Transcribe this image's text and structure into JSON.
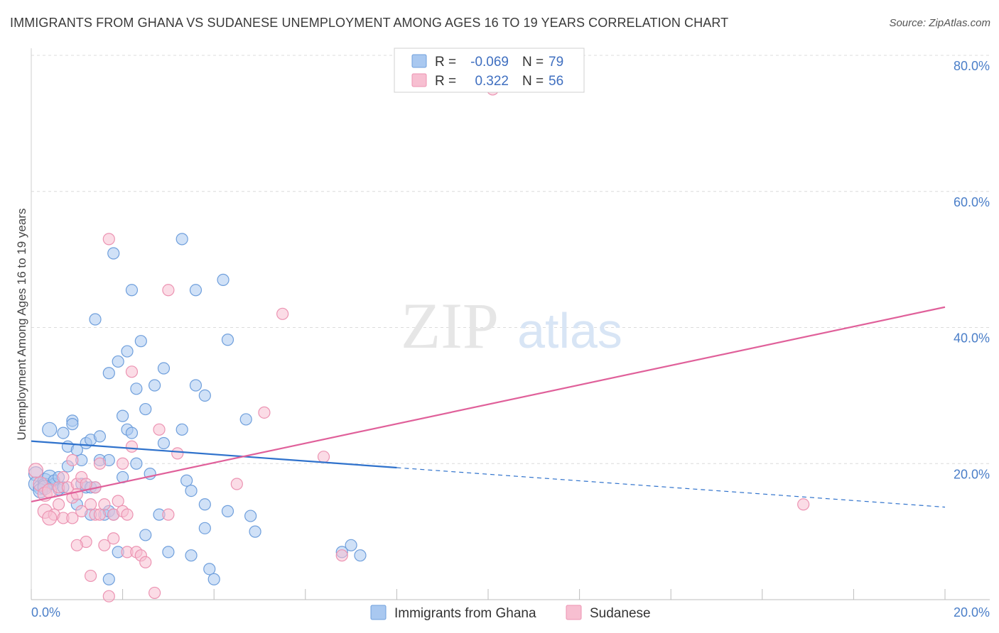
{
  "title": "IMMIGRANTS FROM GHANA VS SUDANESE UNEMPLOYMENT AMONG AGES 16 TO 19 YEARS CORRELATION CHART",
  "source": "Source: ZipAtlas.com",
  "colors": {
    "ghana_fill": "#a9c8f0",
    "ghana_stroke": "#6f9fdc",
    "ghana_line": "#2f72cc",
    "sudanese_fill": "#f7bfd1",
    "sudanese_stroke": "#ec93b2",
    "sudanese_line": "#e0609a",
    "grid": "#dcdcdc",
    "tick_label": "#4a7ec8"
  },
  "legend": {
    "rows": [
      {
        "r_label": "R =",
        "r_value": "-0.069",
        "n_label": "N =",
        "n_value": "79"
      },
      {
        "r_label": "R =",
        "r_value": "0.322",
        "n_label": "N =",
        "n_value": "56"
      }
    ]
  },
  "watermark": {
    "zip": "ZIP",
    "atlas": "atlas"
  },
  "chart_data": {
    "type": "scatter",
    "title": "IMMIGRANTS FROM GHANA VS SUDANESE UNEMPLOYMENT AMONG AGES 16 TO 19 YEARS CORRELATION CHART",
    "xlabel": "",
    "ylabel": "Unemployment Among Ages 16 to 19 years",
    "xlim": [
      0,
      20
    ],
    "ylim": [
      0,
      80
    ],
    "x_tick_labels": [
      "0.0%",
      "20.0%"
    ],
    "y_ticks": [
      20,
      40,
      60,
      80
    ],
    "y_tick_labels": [
      "20.0%",
      "40.0%",
      "60.0%",
      "80.0%"
    ],
    "grid": true,
    "legend_position": "top-center",
    "series": [
      {
        "name": "Immigrants from Ghana",
        "color_key": "ghana",
        "trend": {
          "x0": 0,
          "y0": 23.3,
          "x1": 8,
          "y1": 19.4,
          "dashed_to_x": 20,
          "dashed_to_y": 13.6
        },
        "points": [
          [
            0.1,
            18.5
          ],
          [
            0.1,
            17.0
          ],
          [
            0.2,
            16.5
          ],
          [
            0.3,
            17.5
          ],
          [
            0.3,
            16.8
          ],
          [
            0.4,
            18.0
          ],
          [
            0.4,
            25.0
          ],
          [
            0.5,
            17.0
          ],
          [
            0.5,
            17.5
          ],
          [
            0.6,
            16.2
          ],
          [
            0.7,
            16.5
          ],
          [
            0.7,
            24.5
          ],
          [
            0.8,
            22.5
          ],
          [
            0.8,
            19.6
          ],
          [
            0.9,
            26.3
          ],
          [
            0.9,
            25.8
          ],
          [
            1.0,
            22.0
          ],
          [
            1.1,
            20.5
          ],
          [
            1.1,
            17.0
          ],
          [
            1.2,
            23.0
          ],
          [
            1.2,
            16.5
          ],
          [
            1.3,
            23.5
          ],
          [
            1.3,
            16.5
          ],
          [
            1.3,
            12.5
          ],
          [
            1.4,
            16.5
          ],
          [
            1.4,
            41.2
          ],
          [
            1.5,
            20.5
          ],
          [
            1.5,
            24.0
          ],
          [
            1.6,
            12.5
          ],
          [
            1.7,
            20.5
          ],
          [
            1.7,
            13.0
          ],
          [
            1.7,
            33.3
          ],
          [
            1.7,
            3.0
          ],
          [
            1.8,
            50.9
          ],
          [
            1.8,
            12.5
          ],
          [
            1.9,
            7.0
          ],
          [
            1.9,
            35.0
          ],
          [
            2.0,
            18.0
          ],
          [
            2.0,
            27.0
          ],
          [
            2.1,
            25.0
          ],
          [
            2.1,
            36.5
          ],
          [
            2.2,
            45.5
          ],
          [
            2.2,
            24.5
          ],
          [
            2.3,
            31.0
          ],
          [
            2.3,
            20.0
          ],
          [
            2.4,
            38.0
          ],
          [
            2.5,
            28.0
          ],
          [
            2.5,
            9.5
          ],
          [
            2.6,
            18.5
          ],
          [
            2.7,
            31.5
          ],
          [
            2.8,
            12.5
          ],
          [
            2.9,
            34.0
          ],
          [
            2.9,
            23.0
          ],
          [
            3.0,
            7.0
          ],
          [
            3.3,
            25.0
          ],
          [
            3.3,
            53.0
          ],
          [
            3.4,
            17.5
          ],
          [
            3.5,
            16.0
          ],
          [
            3.5,
            6.5
          ],
          [
            3.6,
            45.5
          ],
          [
            3.6,
            31.5
          ],
          [
            3.8,
            30.0
          ],
          [
            3.8,
            10.5
          ],
          [
            3.8,
            14.0
          ],
          [
            3.9,
            4.5
          ],
          [
            4.0,
            3.0
          ],
          [
            4.2,
            47.0
          ],
          [
            4.3,
            38.2
          ],
          [
            4.3,
            13.0
          ],
          [
            4.7,
            26.5
          ],
          [
            4.8,
            12.3
          ],
          [
            4.9,
            10.0
          ],
          [
            6.8,
            7.0
          ],
          [
            7.0,
            8.0
          ],
          [
            7.2,
            6.5
          ],
          [
            0.2,
            16.0
          ],
          [
            0.6,
            18.0
          ],
          [
            1.0,
            14.0
          ],
          [
            0.3,
            16.5
          ]
        ]
      },
      {
        "name": "Sudanese",
        "color_key": "sudanese",
        "trend": {
          "x0": 0,
          "y0": 14.4,
          "x1": 20,
          "y1": 43.0
        },
        "points": [
          [
            0.1,
            19.0
          ],
          [
            0.2,
            17.0
          ],
          [
            0.3,
            15.5
          ],
          [
            0.3,
            13.0
          ],
          [
            0.4,
            16.0
          ],
          [
            0.5,
            12.5
          ],
          [
            0.6,
            16.5
          ],
          [
            0.6,
            14.0
          ],
          [
            0.7,
            12.0
          ],
          [
            0.7,
            18.0
          ],
          [
            0.8,
            16.5
          ],
          [
            0.9,
            20.5
          ],
          [
            0.9,
            15.0
          ],
          [
            1.0,
            17.0
          ],
          [
            1.0,
            15.5
          ],
          [
            1.1,
            13.0
          ],
          [
            1.1,
            18.0
          ],
          [
            1.2,
            8.5
          ],
          [
            1.3,
            14.0
          ],
          [
            1.3,
            3.5
          ],
          [
            1.4,
            12.5
          ],
          [
            1.4,
            16.5
          ],
          [
            1.5,
            20.0
          ],
          [
            1.5,
            12.5
          ],
          [
            1.6,
            8.0
          ],
          [
            1.6,
            14.0
          ],
          [
            1.7,
            0.5
          ],
          [
            1.7,
            53.0
          ],
          [
            1.8,
            12.5
          ],
          [
            1.8,
            9.0
          ],
          [
            1.9,
            14.5
          ],
          [
            2.0,
            20.0
          ],
          [
            2.0,
            13.0
          ],
          [
            2.1,
            7.0
          ],
          [
            2.1,
            12.5
          ],
          [
            2.2,
            22.5
          ],
          [
            2.2,
            33.5
          ],
          [
            2.3,
            7.0
          ],
          [
            2.4,
            6.5
          ],
          [
            2.5,
            5.5
          ],
          [
            2.7,
            1.0
          ],
          [
            2.8,
            25.0
          ],
          [
            3.0,
            45.5
          ],
          [
            3.0,
            12.5
          ],
          [
            3.2,
            21.5
          ],
          [
            4.5,
            17.0
          ],
          [
            5.1,
            27.5
          ],
          [
            5.5,
            42.0
          ],
          [
            6.4,
            21.0
          ],
          [
            6.8,
            6.5
          ],
          [
            10.1,
            75.0
          ],
          [
            16.9,
            14.0
          ],
          [
            0.4,
            12.0
          ],
          [
            0.9,
            12.0
          ],
          [
            1.0,
            8.0
          ],
          [
            1.2,
            17.0
          ]
        ]
      }
    ]
  }
}
